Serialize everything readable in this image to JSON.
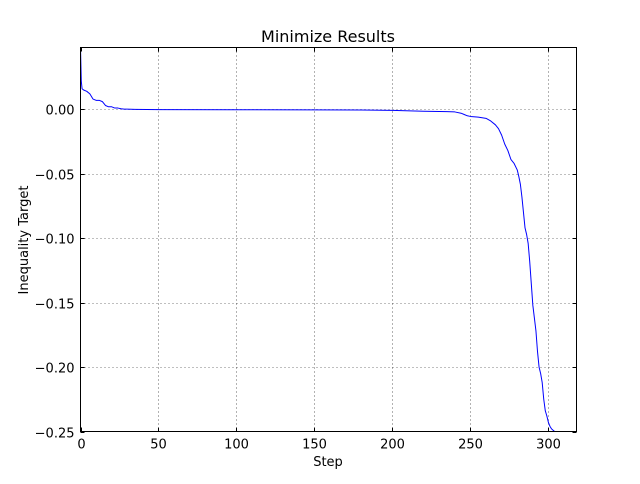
{
  "chart_data": {
    "type": "line",
    "title": "Minimize Results",
    "xlabel": "Step",
    "ylabel": "Inequality Target",
    "xlim": [
      0,
      318
    ],
    "ylim": [
      -0.25,
      0.048
    ],
    "grid": true,
    "legend": "none",
    "xticks": [
      0,
      50,
      100,
      150,
      200,
      250,
      300
    ],
    "xtick_labels": [
      "0",
      "50",
      "100",
      "150",
      "200",
      "250",
      "300"
    ],
    "yticks": [
      0.0,
      -0.05,
      -0.1,
      -0.15,
      -0.2,
      -0.25
    ],
    "ytick_labels": [
      "0.00",
      "−0.05",
      "−0.10",
      "−0.15",
      "−0.20",
      "−0.25"
    ],
    "colors": {
      "line": "#0000ff",
      "frame": "#000000",
      "grid": "#000000",
      "background": "#ffffff"
    },
    "series": [
      {
        "x": [
          0,
          0.5,
          1,
          2,
          4,
          6,
          8,
          10,
          12,
          14,
          16,
          18,
          20,
          22,
          24,
          26,
          28,
          35,
          50,
          100,
          150,
          180,
          200,
          220,
          235,
          240,
          244,
          246,
          248,
          250,
          255,
          260,
          263,
          266,
          268,
          270,
          272,
          274,
          276,
          278,
          280,
          281,
          282,
          283,
          284,
          285,
          286,
          287,
          288,
          289,
          290,
          291,
          292,
          293,
          294,
          295,
          296,
          297,
          298,
          299,
          300,
          301,
          302,
          303,
          304,
          305,
          306,
          307,
          308,
          310,
          312,
          315,
          318
        ],
        "y": [
          0.048,
          0.022,
          0.016,
          0.015,
          0.014,
          0.012,
          0.008,
          0.007,
          0.007,
          0.006,
          0.003,
          0.002,
          0.002,
          0.001,
          0.001,
          0.0005,
          0.0002,
          0.0,
          -0.0002,
          -0.0003,
          -0.0004,
          -0.0005,
          -0.0008,
          -0.0015,
          -0.0018,
          -0.002,
          -0.003,
          -0.004,
          -0.005,
          -0.0055,
          -0.006,
          -0.007,
          -0.009,
          -0.012,
          -0.015,
          -0.02,
          -0.027,
          -0.032,
          -0.039,
          -0.042,
          -0.047,
          -0.052,
          -0.058,
          -0.068,
          -0.08,
          -0.092,
          -0.097,
          -0.104,
          -0.118,
          -0.135,
          -0.152,
          -0.162,
          -0.172,
          -0.188,
          -0.2,
          -0.205,
          -0.212,
          -0.225,
          -0.234,
          -0.238,
          -0.243,
          -0.246,
          -0.248,
          -0.249,
          -0.25,
          -0.25,
          -0.25,
          -0.25,
          -0.25,
          -0.25,
          -0.25,
          -0.25,
          -0.25
        ]
      }
    ]
  }
}
